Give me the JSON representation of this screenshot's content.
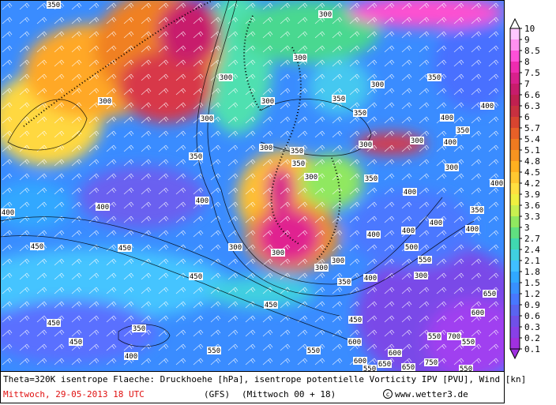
{
  "map": {
    "caption": {
      "line1": "Theta=320K isentrope Flaeche: Druckhoehe [hPa], isentrope potentielle Vorticity IPV [PVU], Wind [kn]",
      "date": "Mittwoch, 29-05-2013  18 UTC",
      "model": "(GFS)",
      "run": "(Mittwoch 00 + 18)",
      "source": "www.wetter3.de"
    },
    "legend": {
      "levels": [
        10,
        9,
        8.5,
        8,
        7.5,
        7,
        6.6,
        6.3,
        6,
        5.7,
        5.4,
        5.1,
        4.8,
        4.5,
        4.2,
        3.9,
        3.6,
        3.3,
        3,
        2.7,
        2.4,
        2.1,
        1.8,
        1.5,
        1.2,
        0.9,
        0.6,
        0.3,
        0.2,
        0.1
      ],
      "colors": [
        "#ffffff",
        "#ffc8ff",
        "#ff90f0",
        "#ff50d8",
        "#ee2cb0",
        "#d8208c",
        "#c81c6c",
        "#c02050",
        "#c83040",
        "#d84430",
        "#e86028",
        "#f07a20",
        "#f89420",
        "#ffb020",
        "#ffc830",
        "#ffe040",
        "#f0f040",
        "#c8f050",
        "#90e860",
        "#60e080",
        "#40d8b0",
        "#40d0e0",
        "#40c0ff",
        "#30a8ff",
        "#3890ff",
        "#4878ff",
        "#5a64f0",
        "#7050e8",
        "#8840e8",
        "#a030e0"
      ]
    },
    "contour_labels": [
      "350",
      "300",
      "300",
      "300",
      "300",
      "300",
      "300",
      "350",
      "350",
      "300",
      "350",
      "400",
      "400",
      "350",
      "400",
      "300",
      "350",
      "300",
      "300",
      "350",
      "350",
      "300",
      "300",
      "400",
      "350",
      "400",
      "400",
      "400",
      "400",
      "350",
      "400",
      "400",
      "400",
      "400",
      "450",
      "300",
      "300",
      "300",
      "300",
      "500",
      "550",
      "450",
      "450",
      "300",
      "350",
      "400",
      "450",
      "450",
      "350",
      "450",
      "450",
      "400",
      "550",
      "550",
      "600",
      "550",
      "700",
      "550",
      "600",
      "650",
      "600",
      "650",
      "650",
      "750",
      "550",
      "600",
      "550"
    ]
  }
}
